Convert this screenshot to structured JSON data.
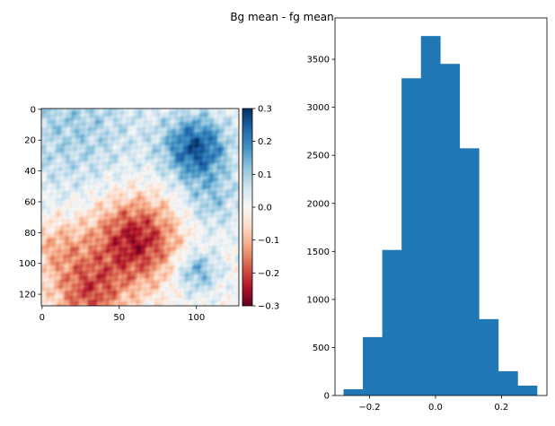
{
  "chart_data": [
    {
      "type": "heatmap",
      "title": "",
      "shape": [
        128,
        128
      ],
      "colormap": "RdBu",
      "vmin": -0.3,
      "vmax": 0.3,
      "xlim": [
        -0.5,
        127.5
      ],
      "ylim": [
        127.5,
        -0.5
      ],
      "xticks": [
        0,
        50,
        100
      ],
      "xtick_labels": [
        "0",
        "50",
        "100"
      ],
      "yticks": [
        0,
        20,
        40,
        60,
        80,
        100,
        120
      ],
      "ytick_labels": [
        "0",
        "20",
        "40",
        "60",
        "80",
        "100",
        "120"
      ],
      "colorbar": {
        "ticks": [
          0.3,
          0.2,
          0.1,
          0.0,
          -0.1,
          -0.2,
          -0.3
        ],
        "tick_labels": [
          "0.3",
          "0.2",
          "0.1",
          "0.0",
          "−0.1",
          "−0.2",
          "−0.3"
        ]
      },
      "description_features": {
        "blue_regions": [
          [
            25,
            100,
            0.25
          ],
          [
            10,
            20,
            0.1
          ],
          [
            105,
            100,
            0.15
          ],
          [
            60,
            110,
            0.1
          ]
        ],
        "red_regions": [
          [
            85,
            60,
            -0.25
          ],
          [
            120,
            30,
            -0.18
          ],
          [
            90,
            10,
            -0.1
          ]
        ]
      }
    },
    {
      "type": "bar",
      "subtype": "histogram",
      "bin_edges": [
        -0.279,
        -0.2203,
        -0.1616,
        -0.1029,
        -0.0442,
        0.0145,
        0.0732,
        0.1319,
        0.1906,
        0.2493,
        0.308
      ],
      "values": [
        65,
        608,
        1515,
        3302,
        3742,
        3452,
        2573,
        795,
        253,
        103
      ],
      "color": "#1f77b4",
      "xlim": [
        -0.305,
        0.338
      ],
      "ylim": [
        0,
        3930
      ],
      "xticks": [
        -0.2,
        0.0,
        0.2
      ],
      "xtick_labels": [
        "−0.2",
        "0.0",
        "0.2"
      ],
      "yticks": [
        0,
        500,
        1000,
        1500,
        2000,
        2500,
        3000,
        3500
      ],
      "ytick_labels": [
        "0",
        "500",
        "1000",
        "1500",
        "2000",
        "2500",
        "3000",
        "3500"
      ],
      "xlabel": "",
      "ylabel": ""
    }
  ],
  "figure": {
    "suptitle": "Bg mean - fg mean"
  }
}
